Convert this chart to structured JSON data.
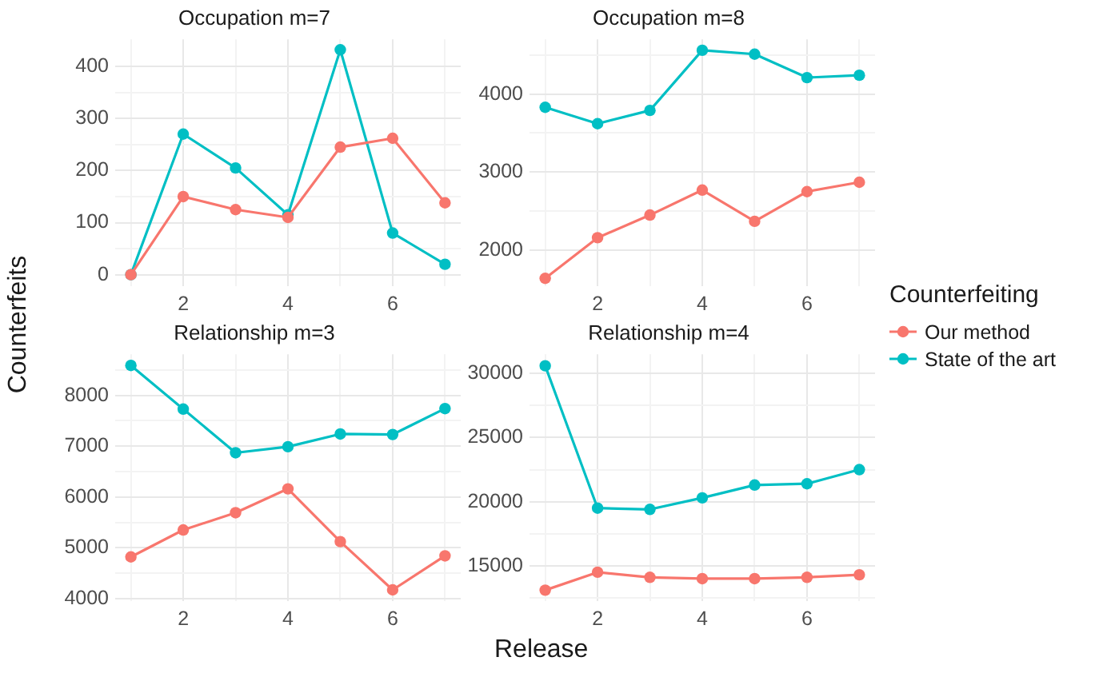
{
  "chart_data": [
    {
      "type": "line",
      "title": "Occupation m=7",
      "ylabel": "Counterfeits",
      "legend": "right",
      "legend_title": "Counterfeiting",
      "x": [
        1,
        2,
        3,
        4,
        5,
        6,
        7
      ],
      "xlim": [
        0.7,
        7.3
      ],
      "xticks": [
        {
          "value": 1,
          "label": null
        },
        2,
        {
          "value": 3,
          "label": null
        },
        4,
        {
          "value": 5,
          "label": null
        },
        6,
        {
          "value": 7,
          "label": null
        }
      ],
      "ylim": [
        -22,
        452
      ],
      "yticks": [
        0,
        {
          "value": 50,
          "label": null
        },
        100,
        {
          "value": 150,
          "label": null
        },
        200,
        {
          "value": 250,
          "label": null
        },
        300,
        {
          "value": 350,
          "label": null
        },
        400
      ],
      "grid": true,
      "marker": "circle",
      "series": [
        {
          "name": "Our method",
          "color": "#f8766d",
          "values": [
            0,
            150,
            125,
            110,
            245,
            262,
            138
          ]
        },
        {
          "name": "State of the art",
          "color": "#00bfc4",
          "values": [
            0,
            270,
            205,
            115,
            432,
            80,
            20
          ]
        }
      ]
    },
    {
      "type": "line",
      "title": "Occupation m=8",
      "x": [
        1,
        2,
        3,
        4,
        5,
        6,
        7
      ],
      "xlim": [
        0.7,
        7.3
      ],
      "xticks": [
        {
          "value": 1,
          "label": null
        },
        2,
        {
          "value": 3,
          "label": null
        },
        4,
        {
          "value": 5,
          "label": null
        },
        6,
        {
          "value": 7,
          "label": null
        }
      ],
      "ylim": [
        1540,
        4700
      ],
      "yticks": [
        2000,
        {
          "value": 2500,
          "label": null
        },
        3000,
        {
          "value": 3500,
          "label": null
        },
        4000,
        {
          "value": 4500,
          "label": null
        }
      ],
      "grid": true,
      "marker": "circle",
      "series": [
        {
          "color": "#f8766d",
          "values": [
            1640,
            2160,
            2450,
            2770,
            2370,
            2750,
            2870
          ]
        },
        {
          "color": "#00bfc4",
          "values": [
            3830,
            3620,
            3790,
            4560,
            4510,
            4210,
            4240
          ]
        }
      ]
    },
    {
      "type": "line",
      "title": "Relationship m=3",
      "xlabel": "Release",
      "x": [
        1,
        2,
        3,
        4,
        5,
        6,
        7
      ],
      "xlim": [
        0.7,
        7.3
      ],
      "xticks": [
        {
          "value": 1,
          "label": null
        },
        2,
        {
          "value": 3,
          "label": null
        },
        4,
        {
          "value": 5,
          "label": null
        },
        6,
        {
          "value": 7,
          "label": null
        }
      ],
      "ylim": [
        3950,
        8810
      ],
      "yticks": [
        4000,
        {
          "value": 4500,
          "label": null
        },
        5000,
        {
          "value": 5500,
          "label": null
        },
        6000,
        {
          "value": 6500,
          "label": null
        },
        7000,
        {
          "value": 7500,
          "label": null
        },
        8000,
        {
          "value": 8500,
          "label": null
        }
      ],
      "grid": true,
      "marker": "circle",
      "series": [
        {
          "color": "#f8766d",
          "values": [
            4820,
            5350,
            5690,
            6160,
            5120,
            4170,
            4840
          ]
        },
        {
          "color": "#00bfc4",
          "values": [
            8590,
            7730,
            6870,
            6990,
            7240,
            7230,
            7740
          ]
        }
      ]
    },
    {
      "type": "line",
      "title": "Relationship m=4",
      "x": [
        1,
        2,
        3,
        4,
        5,
        6,
        7
      ],
      "xlim": [
        0.7,
        7.3
      ],
      "xticks": [
        {
          "value": 1,
          "label": null
        },
        2,
        {
          "value": 3,
          "label": null
        },
        4,
        {
          "value": 5,
          "label": null
        },
        6,
        {
          "value": 7,
          "label": null
        }
      ],
      "ylim": [
        12250,
        31500
      ],
      "yticks": [
        {
          "value": 12500,
          "label": null
        },
        15000,
        {
          "value": 17500,
          "label": null
        },
        20000,
        {
          "value": 22500,
          "label": null
        },
        25000,
        {
          "value": 27500,
          "label": null
        },
        30000
      ],
      "grid": true,
      "marker": "circle",
      "series": [
        {
          "color": "#f8766d",
          "values": [
            13100,
            14500,
            14100,
            14000,
            14000,
            14100,
            14300
          ]
        },
        {
          "color": "#00bfc4",
          "values": [
            30600,
            19500,
            19400,
            20300,
            21300,
            21400,
            22500
          ]
        }
      ]
    }
  ]
}
